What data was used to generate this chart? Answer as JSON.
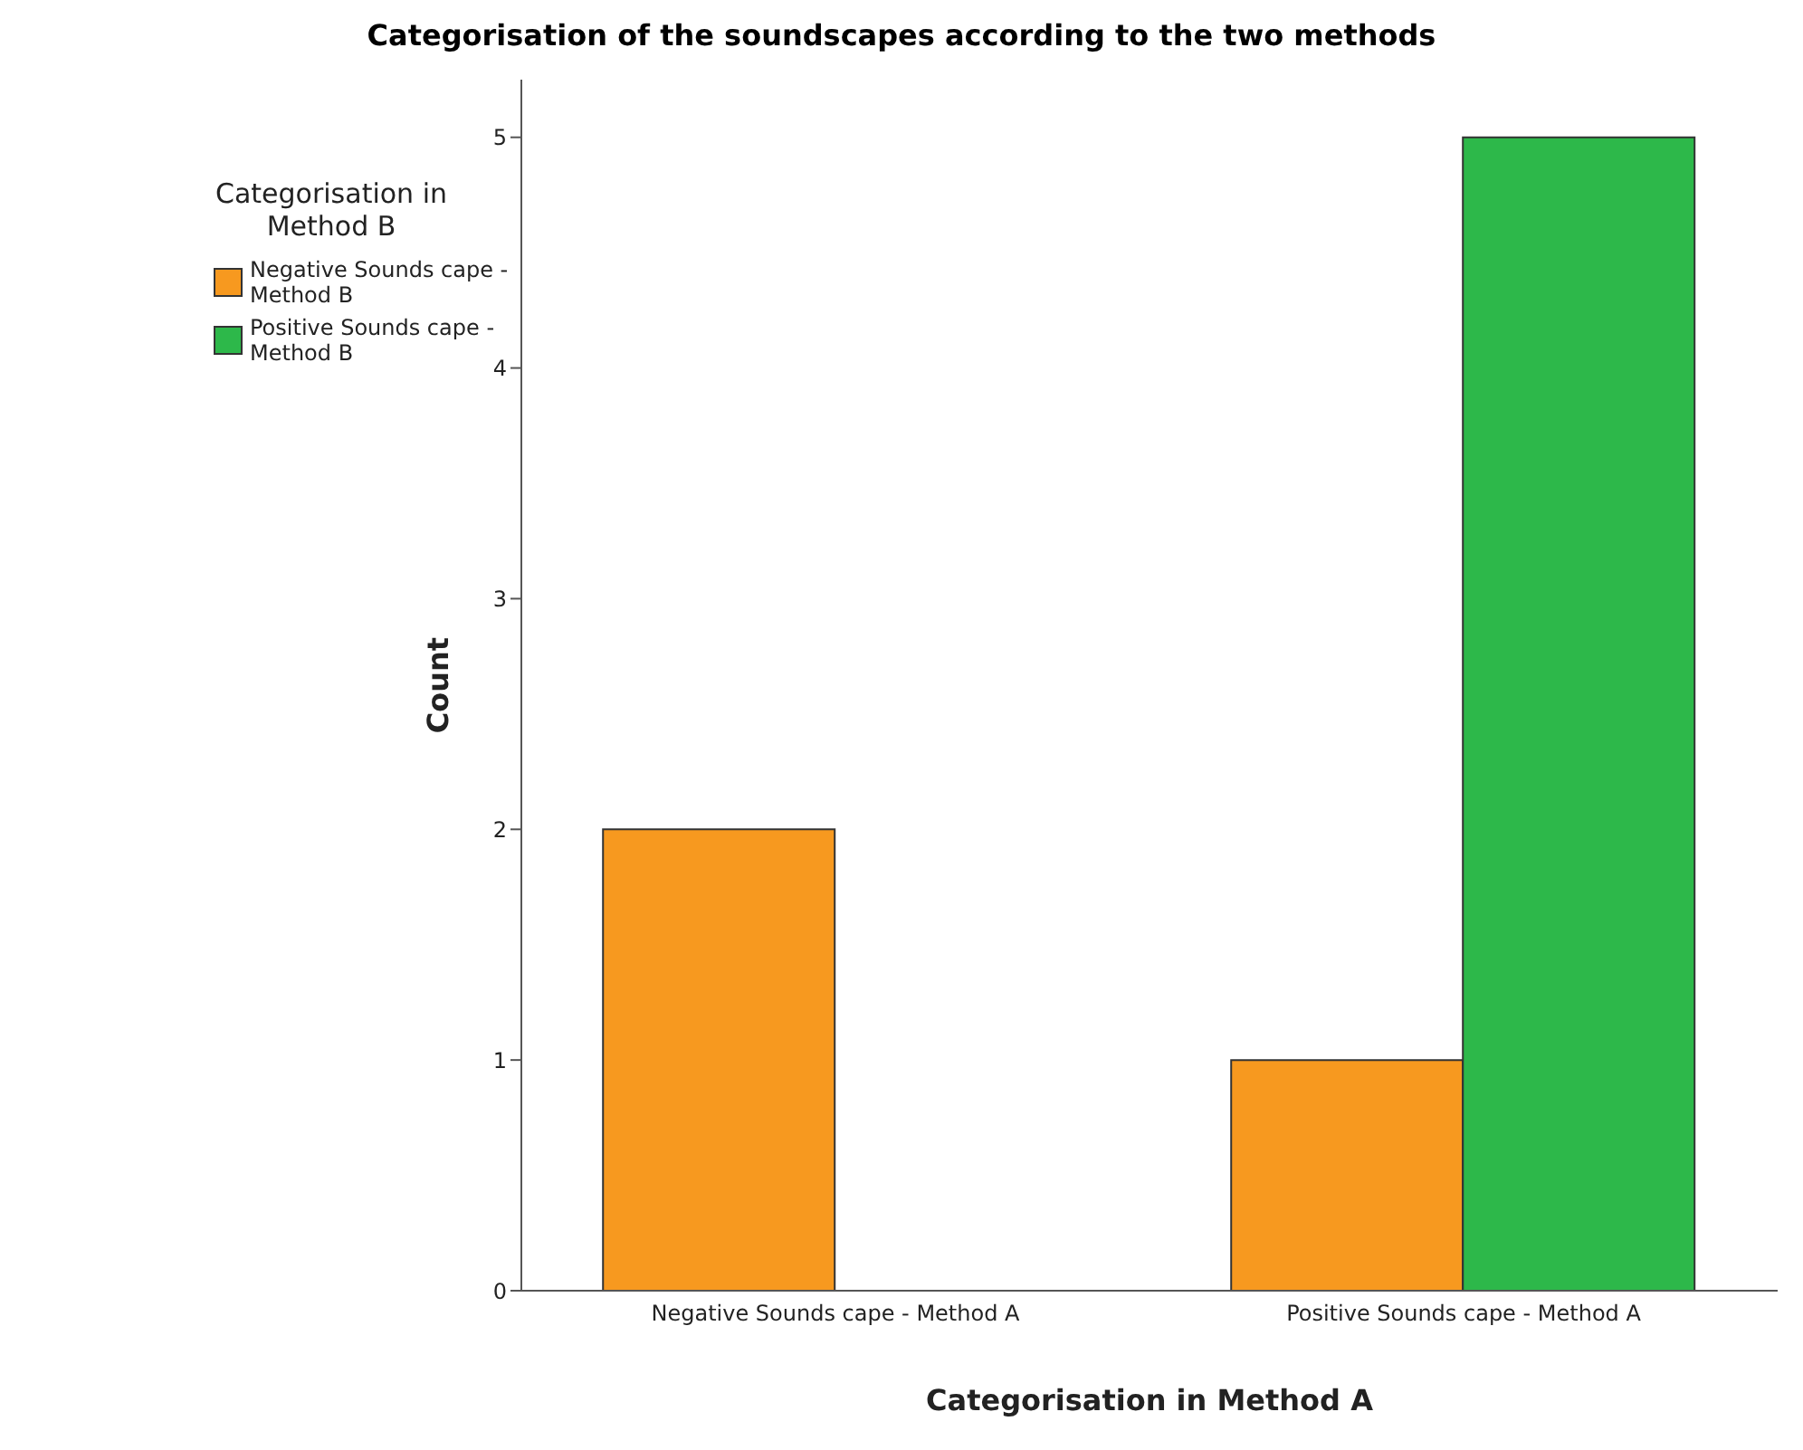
{
  "chart_data": {
    "type": "bar",
    "title": "Categorisation of the soundscapes according to the two methods",
    "xlabel": "Categorisation in Method A",
    "ylabel": "Count",
    "legend_title": "Categorisation in Method B",
    "categories": [
      "Negative Sounds cape - Method A",
      "Positive Sounds cape - Method A"
    ],
    "series": [
      {
        "name": "Negative Sounds cape - Method B",
        "color": "#f7991f",
        "values": [
          2,
          1
        ]
      },
      {
        "name": "Positive Sounds cape - Method B",
        "color": "#2db84a",
        "values": [
          null,
          5
        ]
      }
    ],
    "ylim": [
      0,
      5.25
    ],
    "yticks": [
      0,
      1,
      2,
      3,
      4,
      5
    ],
    "grid": false,
    "legend": "top left"
  }
}
